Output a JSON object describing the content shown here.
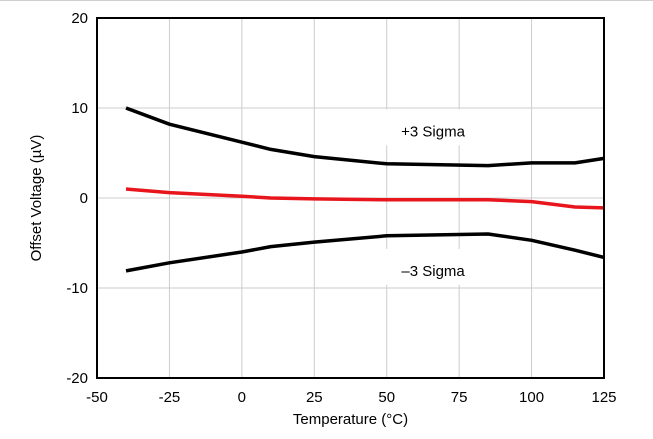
{
  "chart_data": {
    "type": "line",
    "title": "",
    "xlabel": "Temperature (°C)",
    "ylabel": "Offset Voltage (µV)",
    "xlim": [
      -50,
      125
    ],
    "ylim": [
      -20,
      20
    ],
    "xticks": [
      -50,
      -25,
      0,
      25,
      50,
      75,
      100,
      125
    ],
    "yticks": [
      -20,
      -10,
      0,
      10,
      20
    ],
    "grid": true,
    "legend": "none",
    "series": [
      {
        "color": "#000000",
        "x": [
          -40,
          -25,
          0,
          10,
          25,
          50,
          85,
          100,
          115,
          125
        ],
        "y": [
          10.0,
          8.2,
          6.2,
          5.4,
          4.6,
          3.8,
          3.6,
          3.9,
          3.9,
          4.4
        ]
      },
      {
        "color": "#e8161c",
        "x": [
          -40,
          -25,
          0,
          10,
          25,
          50,
          85,
          100,
          115,
          125
        ],
        "y": [
          1.0,
          0.6,
          0.2,
          0.0,
          -0.1,
          -0.2,
          -0.2,
          -0.4,
          -1.0,
          -1.1
        ]
      },
      {
        "color": "#000000",
        "x": [
          -40,
          -25,
          0,
          10,
          25,
          50,
          85,
          100,
          115,
          125
        ],
        "y": [
          -8.1,
          -7.2,
          -6.0,
          -5.4,
          -4.9,
          -4.2,
          -4.0,
          -4.7,
          -5.8,
          -6.6
        ]
      }
    ],
    "annotations": [
      {
        "text": "+3 Sigma",
        "x": 66,
        "y": 7.4
      },
      {
        "text": "–3 Sigma",
        "x": 66,
        "y": -8.1
      }
    ]
  }
}
